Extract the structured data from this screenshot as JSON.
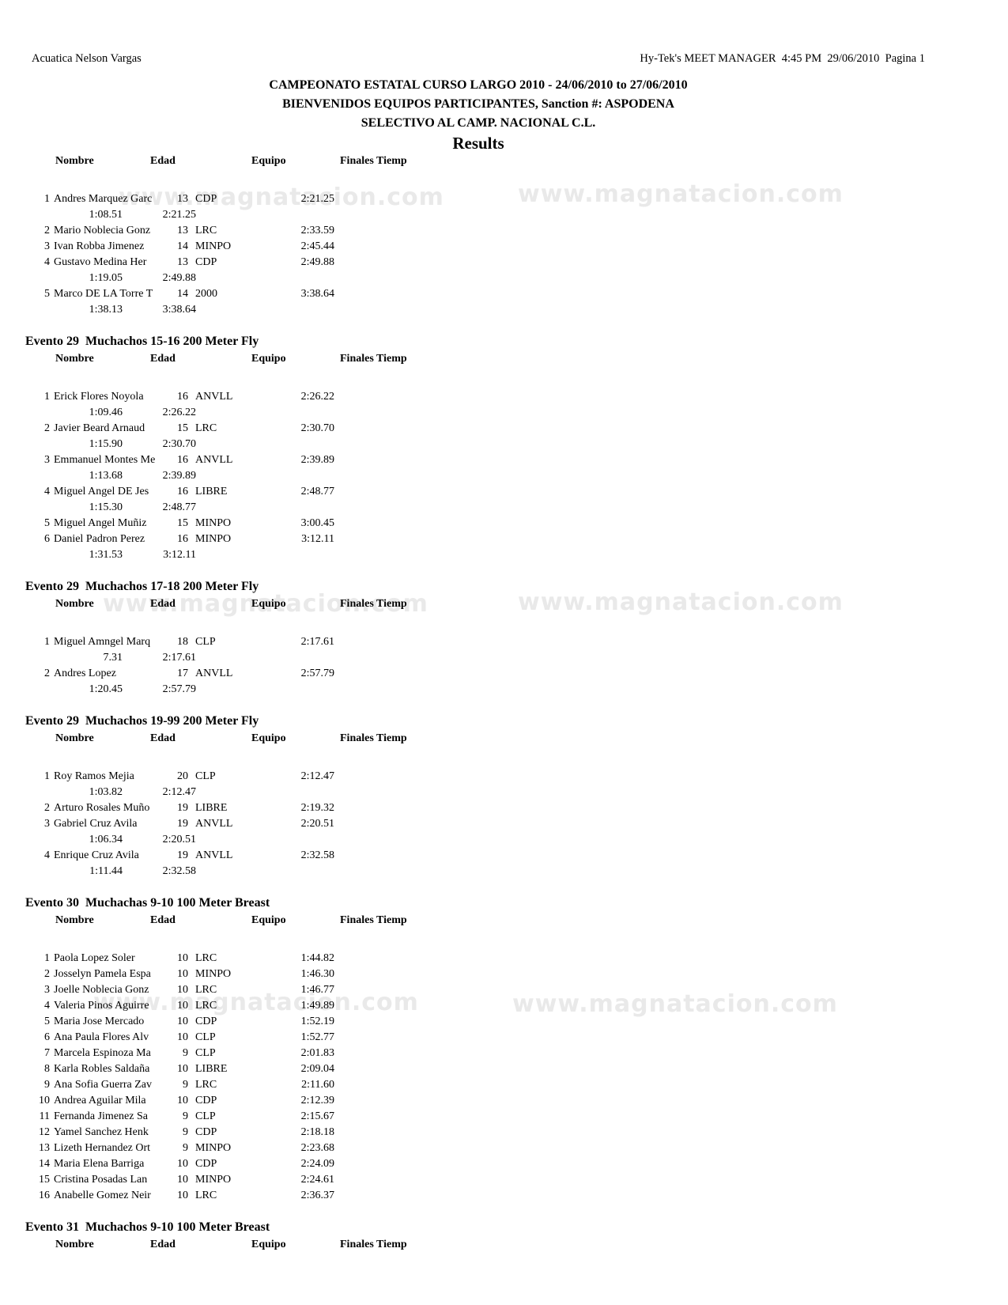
{
  "page": {
    "header_left": "Acuatica Nelson Vargas",
    "header_right": "Hy-Tek's MEET MANAGER  4:45 PM  29/06/2010  Pagina 1",
    "title_line1": "CAMPEONATO ESTATAL CURSO LARGO 2010 - 24/06/2010 to 27/06/2010",
    "title_line2": "BIENVENIDOS EQUIPOS PARTICIPANTES, Sanction #: ASPODENA",
    "title_line3": "SELECTIVO AL CAMP. NACIONAL C.L.",
    "results_heading": "Results"
  },
  "columns": {
    "name": "Nombre",
    "age": "Edad",
    "team": "Equipo",
    "finals": "Finales Tiemp"
  },
  "watermark": {
    "text": "www.magnatacion.com",
    "color": "#e9e9e9"
  },
  "sections": [
    {
      "title": null,
      "rows": [
        {
          "place": "1",
          "name": "Andres Marquez Garc",
          "age": "13",
          "team": "CDP",
          "time": "2:21.25",
          "splits": [
            "1:08.51",
            "2:21.25"
          ]
        },
        {
          "place": "2",
          "name": "Mario Noblecia Gonz",
          "age": "13",
          "team": "LRC",
          "time": "2:33.59",
          "splits": null
        },
        {
          "place": "3",
          "name": "Ivan Robba Jimenez",
          "age": "14",
          "team": "MINPO",
          "time": "2:45.44",
          "splits": null
        },
        {
          "place": "4",
          "name": "Gustavo Medina Her",
          "age": "13",
          "team": "CDP",
          "time": "2:49.88",
          "splits": [
            "1:19.05",
            "2:49.88"
          ]
        },
        {
          "place": "5",
          "name": "Marco DE LA Torre T",
          "age": "14",
          "team": "2000",
          "time": "3:38.64",
          "splits": [
            "1:38.13",
            "3:38.64"
          ]
        }
      ]
    },
    {
      "title": "Evento 29  Muchachos 15-16 200 Meter Fly",
      "rows": [
        {
          "place": "1",
          "name": "Erick Flores Noyola",
          "age": "16",
          "team": "ANVLL",
          "time": "2:26.22",
          "splits": [
            "1:09.46",
            "2:26.22"
          ]
        },
        {
          "place": "2",
          "name": "Javier Beard Arnaud",
          "age": "15",
          "team": "LRC",
          "time": "2:30.70",
          "splits": [
            "1:15.90",
            "2:30.70"
          ]
        },
        {
          "place": "3",
          "name": "Emmanuel Montes Me",
          "age": "16",
          "team": "ANVLL",
          "time": "2:39.89",
          "splits": [
            "1:13.68",
            "2:39.89"
          ]
        },
        {
          "place": "4",
          "name": "Miguel Angel DE Jes",
          "age": "16",
          "team": "LIBRE",
          "time": "2:48.77",
          "splits": [
            "1:15.30",
            "2:48.77"
          ]
        },
        {
          "place": "5",
          "name": "Miguel Angel Muñiz",
          "age": "15",
          "team": "MINPO",
          "time": "3:00.45",
          "splits": null
        },
        {
          "place": "6",
          "name": "Daniel Padron Perez",
          "age": "16",
          "team": "MINPO",
          "time": "3:12.11",
          "splits": [
            "1:31.53",
            "3:12.11"
          ]
        }
      ]
    },
    {
      "title": "Evento 29  Muchachos 17-18 200 Meter Fly",
      "rows": [
        {
          "place": "1",
          "name": "Miguel Amngel Marq",
          "age": "18",
          "team": "CLP",
          "time": "2:17.61",
          "splits": [
            "7.31",
            "2:17.61"
          ]
        },
        {
          "place": "2",
          "name": "Andres Lopez",
          "age": "17",
          "team": "ANVLL",
          "time": "2:57.79",
          "splits": [
            "1:20.45",
            "2:57.79"
          ]
        }
      ]
    },
    {
      "title": "Evento 29  Muchachos 19-99 200 Meter Fly",
      "rows": [
        {
          "place": "1",
          "name": "Roy Ramos Mejia",
          "age": "20",
          "team": "CLP",
          "time": "2:12.47",
          "splits": [
            "1:03.82",
            "2:12.47"
          ]
        },
        {
          "place": "2",
          "name": "Arturo Rosales Muño",
          "age": "19",
          "team": "LIBRE",
          "time": "2:19.32",
          "splits": null
        },
        {
          "place": "3",
          "name": "Gabriel Cruz Avila",
          "age": "19",
          "team": "ANVLL",
          "time": "2:20.51",
          "splits": [
            "1:06.34",
            "2:20.51"
          ]
        },
        {
          "place": "4",
          "name": "Enrique Cruz Avila",
          "age": "19",
          "team": "ANVLL",
          "time": "2:32.58",
          "splits": [
            "1:11.44",
            "2:32.58"
          ]
        }
      ]
    },
    {
      "title": "Evento 30  Muchachas 9-10 100 Meter Breast",
      "rows": [
        {
          "place": "1",
          "name": "Paola Lopez Soler",
          "age": "10",
          "team": "LRC",
          "time": "1:44.82",
          "splits": null
        },
        {
          "place": "2",
          "name": "Josselyn Pamela Espa",
          "age": "10",
          "team": "MINPO",
          "time": "1:46.30",
          "splits": null
        },
        {
          "place": "3",
          "name": "Joelle Noblecia Gonz",
          "age": "10",
          "team": "LRC",
          "time": "1:46.77",
          "splits": null
        },
        {
          "place": "4",
          "name": "Valeria Pinos Aguirre",
          "age": "10",
          "team": "LRC",
          "time": "1:49.89",
          "splits": null
        },
        {
          "place": "5",
          "name": "Maria Jose Mercado",
          "age": "10",
          "team": "CDP",
          "time": "1:52.19",
          "splits": null
        },
        {
          "place": "6",
          "name": "Ana Paula Flores Alv",
          "age": "10",
          "team": "CLP",
          "time": "1:52.77",
          "splits": null
        },
        {
          "place": "7",
          "name": "Marcela Espinoza Ma",
          "age": "9",
          "team": "CLP",
          "time": "2:01.83",
          "splits": null
        },
        {
          "place": "8",
          "name": "Karla Robles Saldaña",
          "age": "10",
          "team": "LIBRE",
          "time": "2:09.04",
          "splits": null
        },
        {
          "place": "9",
          "name": "Ana Sofia Guerra Zav",
          "age": "9",
          "team": "LRC",
          "time": "2:11.60",
          "splits": null
        },
        {
          "place": "10",
          "name": "Andrea Aguilar Mila",
          "age": "10",
          "team": "CDP",
          "time": "2:12.39",
          "splits": null
        },
        {
          "place": "11",
          "name": "Fernanda Jimenez Sa",
          "age": "9",
          "team": "CLP",
          "time": "2:15.67",
          "splits": null
        },
        {
          "place": "12",
          "name": "Yamel Sanchez Henk",
          "age": "9",
          "team": "CDP",
          "time": "2:18.18",
          "splits": null
        },
        {
          "place": "13",
          "name": "Lizeth Hernandez Ort",
          "age": "9",
          "team": "MINPO",
          "time": "2:23.68",
          "splits": null
        },
        {
          "place": "14",
          "name": "Maria Elena Barriga",
          "age": "10",
          "team": "CDP",
          "time": "2:24.09",
          "splits": null
        },
        {
          "place": "15",
          "name": "Cristina Posadas Lan",
          "age": "10",
          "team": "MINPO",
          "time": "2:24.61",
          "splits": null
        },
        {
          "place": "16",
          "name": "Anabelle Gomez Neir",
          "age": "10",
          "team": "LRC",
          "time": "2:36.37",
          "splits": null
        }
      ]
    },
    {
      "title": "Evento 31  Muchachos 9-10 100 Meter Breast",
      "rows": []
    }
  ]
}
